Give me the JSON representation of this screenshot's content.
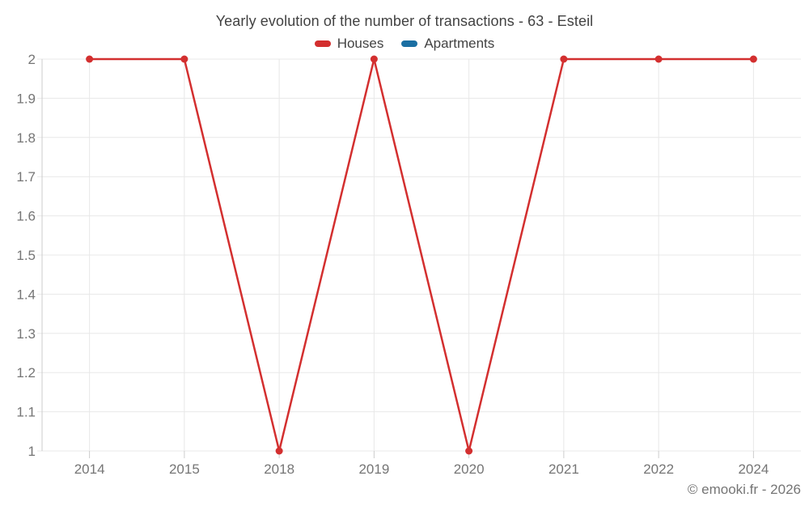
{
  "chart_data": {
    "type": "line",
    "title": "Yearly evolution of the number of transactions - 63 - Esteil",
    "categories": [
      "2014",
      "2015",
      "2018",
      "2019",
      "2020",
      "2021",
      "2022",
      "2024"
    ],
    "series": [
      {
        "name": "Houses",
        "color": "#d32f2f",
        "values": [
          2,
          2,
          1,
          2,
          1,
          2,
          2,
          2
        ]
      },
      {
        "name": "Apartments",
        "color": "#1b6fa3",
        "values": []
      }
    ],
    "xlabel": "",
    "ylabel": "",
    "ylim": [
      1,
      2
    ],
    "ytick_step": 0.1,
    "ytick_labels_top_to_bottom": [
      "2",
      "1.9",
      "1.8",
      "1.7",
      "1.6",
      "1.5",
      "1.4",
      "1.3",
      "1.2",
      "1.1",
      "1"
    ],
    "grid": true,
    "legend_position": "top-center",
    "marker": "circle"
  },
  "colors": {
    "houses_line": "#d32f2f",
    "apartments_line": "#1b6fa3",
    "grid_line": "#e8e8e8",
    "axis_line": "#cccccc",
    "tick_label": "#757575",
    "title_text": "#424242",
    "background": "#ffffff"
  },
  "footer": {
    "credit": "© emooki.fr - 2026"
  }
}
